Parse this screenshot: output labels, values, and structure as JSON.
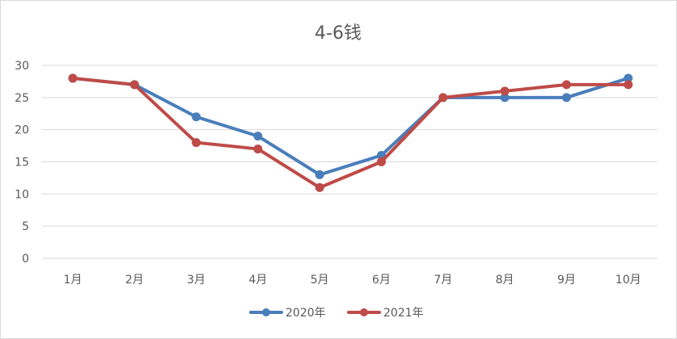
{
  "chart_data": {
    "type": "line",
    "title": "4-6钱",
    "categories": [
      "1月",
      "2月",
      "3月",
      "4月",
      "5月",
      "6月",
      "7月",
      "8月",
      "9月",
      "10月"
    ],
    "series": [
      {
        "name": "2020年",
        "color": "#4a7ebb",
        "values": [
          28,
          27,
          22,
          19,
          13,
          16,
          25,
          25,
          25,
          28
        ]
      },
      {
        "name": "2021年",
        "color": "#be4b48",
        "values": [
          28,
          27,
          18,
          17,
          11,
          15,
          25,
          26,
          27,
          27
        ]
      }
    ],
    "ylim": [
      0,
      30
    ],
    "yticks": [
      0,
      5,
      10,
      15,
      20,
      25,
      30
    ],
    "grid": true,
    "legend": "bottom"
  }
}
